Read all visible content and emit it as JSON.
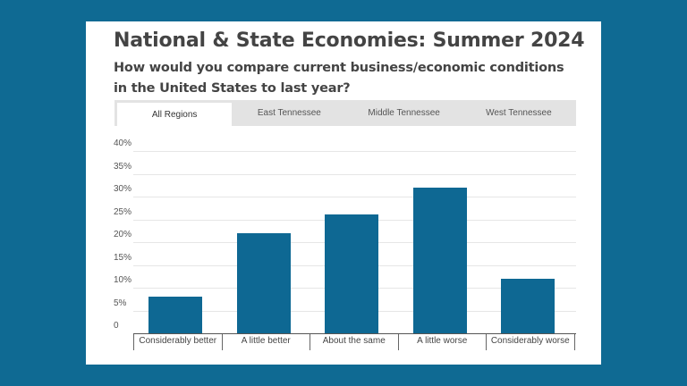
{
  "header": {
    "title": "National & State Economies: Summer 2024",
    "subtitle": "How would you compare current business/economic conditions in the United States to last year?"
  },
  "tabs": [
    {
      "label": "All Regions",
      "active": true
    },
    {
      "label": "East Tennessee",
      "active": false
    },
    {
      "label": "Middle Tennessee",
      "active": false
    },
    {
      "label": "West Tennessee",
      "active": false
    }
  ],
  "colors": {
    "background": "#0f6a93",
    "bar": "#0e6893",
    "tab_bar": "#e3e3e3"
  },
  "chart_data": {
    "type": "bar",
    "title": "National & State Economies: Summer 2024",
    "subtitle": "How would you compare current business/economic conditions in the United States to last year?",
    "categories": [
      "Considerably better",
      "A little better",
      "About the same",
      "A little worse",
      "Considerably worse"
    ],
    "values": [
      8,
      22,
      26,
      32,
      12
    ],
    "unit": "%",
    "xlabel": "",
    "ylabel": "",
    "ylim": [
      0,
      40
    ],
    "yticks": [
      "0",
      "5%",
      "10%",
      "15%",
      "20%",
      "25%",
      "30%",
      "35%",
      "40%"
    ],
    "grid": true,
    "legend": "none"
  }
}
